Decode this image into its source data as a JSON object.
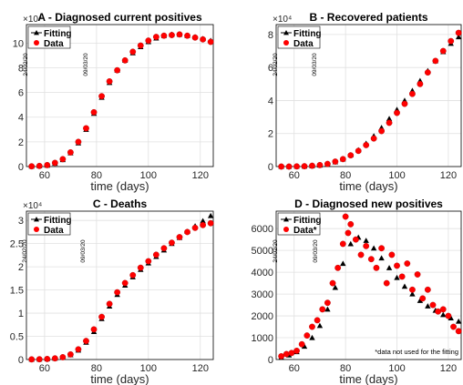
{
  "chart_data": [
    {
      "type": "line",
      "title": "A - Diagnosed current positives",
      "xlabel": "time (days)",
      "ylabel": "",
      "y_exponent_label": "×10⁴",
      "xlim": [
        53,
        125
      ],
      "ylim": [
        0,
        11.5
      ],
      "xticks": [
        60,
        80,
        100,
        120
      ],
      "yticks": [
        0,
        2,
        4,
        6,
        8,
        10
      ],
      "grid": true,
      "legend_position": "top-left",
      "annotations": [
        "24/02/20",
        "09/03/20"
      ],
      "series": [
        {
          "name": "Fitting",
          "marker": "triangle",
          "color": "#000000",
          "x": [
            55,
            58,
            61,
            64,
            67,
            70,
            73,
            76,
            79,
            82,
            85,
            88,
            91,
            94,
            97,
            100,
            103,
            106,
            109,
            112,
            115,
            118,
            121,
            124
          ],
          "y": [
            0.02,
            0.05,
            0.1,
            0.25,
            0.55,
            1.1,
            1.9,
            3.0,
            4.3,
            5.6,
            6.8,
            7.8,
            8.6,
            9.2,
            9.7,
            10.1,
            10.4,
            10.6,
            10.7,
            10.7,
            10.6,
            10.5,
            10.35,
            10.2
          ]
        },
        {
          "name": "Data",
          "marker": "circle",
          "color": "#ff0000",
          "x": [
            55,
            58,
            61,
            64,
            67,
            70,
            73,
            76,
            79,
            82,
            85,
            88,
            91,
            94,
            97,
            100,
            103,
            106,
            109,
            112,
            115,
            118,
            121,
            124
          ],
          "y": [
            0.02,
            0.05,
            0.12,
            0.3,
            0.6,
            1.15,
            2.0,
            3.1,
            4.4,
            5.7,
            6.9,
            7.8,
            8.6,
            9.3,
            9.8,
            10.2,
            10.5,
            10.6,
            10.65,
            10.7,
            10.6,
            10.45,
            10.3,
            10.1
          ]
        }
      ]
    },
    {
      "type": "line",
      "title": "B - Recovered patients",
      "xlabel": "time (days)",
      "ylabel": "",
      "y_exponent_label": "×10⁴",
      "xlim": [
        53,
        125
      ],
      "ylim": [
        0,
        8.6
      ],
      "xticks": [
        60,
        80,
        100,
        120
      ],
      "yticks": [
        0,
        2,
        4,
        6,
        8
      ],
      "grid": true,
      "legend_position": "top-left",
      "annotations": [
        "24/02/20",
        "09/03/20"
      ],
      "series": [
        {
          "name": "Fitting",
          "marker": "triangle",
          "color": "#000000",
          "x": [
            55,
            58,
            61,
            64,
            67,
            70,
            73,
            76,
            79,
            82,
            85,
            88,
            91,
            94,
            97,
            100,
            103,
            106,
            109,
            112,
            115,
            118,
            121,
            124
          ],
          "y": [
            0,
            0,
            0.01,
            0.02,
            0.04,
            0.08,
            0.15,
            0.28,
            0.45,
            0.7,
            1.0,
            1.4,
            1.85,
            2.35,
            2.9,
            3.45,
            4.0,
            4.6,
            5.2,
            5.8,
            6.4,
            6.95,
            7.45,
            7.85
          ]
        },
        {
          "name": "Data",
          "marker": "circle",
          "color": "#ff0000",
          "x": [
            55,
            58,
            61,
            64,
            67,
            70,
            73,
            76,
            79,
            82,
            85,
            88,
            91,
            94,
            97,
            100,
            103,
            106,
            109,
            112,
            115,
            118,
            121,
            124
          ],
          "y": [
            0,
            0,
            0.01,
            0.02,
            0.05,
            0.09,
            0.16,
            0.3,
            0.45,
            0.68,
            0.95,
            1.3,
            1.7,
            2.15,
            2.65,
            3.25,
            3.8,
            4.4,
            5.0,
            5.7,
            6.4,
            7.0,
            7.6,
            8.1
          ]
        }
      ]
    },
    {
      "type": "line",
      "title": "C - Deaths",
      "xlabel": "time (days)",
      "ylabel": "",
      "y_exponent_label": "×10⁴",
      "xlim": [
        53,
        125
      ],
      "ylim": [
        0,
        3.2
      ],
      "xticks": [
        60,
        80,
        100,
        120
      ],
      "yticks": [
        0,
        0.5,
        1,
        1.5,
        2,
        2.5,
        3
      ],
      "ytick_labels": [
        "0",
        "0.5",
        "1",
        "1.5",
        "2",
        "2.5",
        "3"
      ],
      "grid": true,
      "legend_position": "top-left",
      "annotations": [
        "24/02/20",
        "09/03/20"
      ],
      "series": [
        {
          "name": "Fitting",
          "marker": "triangle",
          "color": "#000000",
          "x": [
            55,
            58,
            61,
            64,
            67,
            70,
            73,
            76,
            79,
            82,
            85,
            88,
            91,
            94,
            97,
            100,
            103,
            106,
            109,
            112,
            115,
            118,
            121,
            124
          ],
          "y": [
            0.003,
            0.006,
            0.012,
            0.025,
            0.05,
            0.1,
            0.2,
            0.37,
            0.6,
            0.88,
            1.15,
            1.4,
            1.6,
            1.78,
            1.94,
            2.08,
            2.22,
            2.36,
            2.5,
            2.63,
            2.76,
            2.88,
            2.99,
            3.1
          ]
        },
        {
          "name": "Data",
          "marker": "circle",
          "color": "#ff0000",
          "x": [
            55,
            58,
            61,
            64,
            67,
            70,
            73,
            76,
            79,
            82,
            85,
            88,
            91,
            94,
            97,
            100,
            103,
            106,
            109,
            112,
            115,
            118,
            121,
            124
          ],
          "y": [
            0.003,
            0.006,
            0.012,
            0.025,
            0.05,
            0.11,
            0.22,
            0.4,
            0.65,
            0.92,
            1.2,
            1.45,
            1.65,
            1.82,
            1.98,
            2.12,
            2.26,
            2.4,
            2.52,
            2.64,
            2.75,
            2.84,
            2.9,
            2.94
          ]
        }
      ]
    },
    {
      "type": "scatter",
      "title": "D - Diagnosed new positives",
      "xlabel": "time (days)",
      "ylabel": "",
      "xlim": [
        53,
        125
      ],
      "ylim": [
        0,
        6800
      ],
      "xticks": [
        60,
        80,
        100,
        120
      ],
      "yticks": [
        0,
        1000,
        2000,
        3000,
        4000,
        5000,
        6000
      ],
      "grid": true,
      "legend_position": "top-left",
      "annotations": [
        "24/02/20",
        "09/03/20",
        "*data not used for the fitting"
      ],
      "series": [
        {
          "name": "Fitting",
          "marker": "triangle",
          "color": "#000000",
          "x": [
            55,
            58,
            61,
            64,
            67,
            70,
            73,
            76,
            79,
            82,
            85,
            88,
            91,
            94,
            97,
            100,
            103,
            106,
            109,
            112,
            115,
            118,
            121,
            124
          ],
          "y": [
            100,
            200,
            350,
            600,
            1000,
            1550,
            2300,
            3300,
            4400,
            5300,
            5600,
            5450,
            5100,
            4650,
            4200,
            3750,
            3350,
            3000,
            2700,
            2450,
            2250,
            2050,
            1900,
            1750
          ]
        },
        {
          "name": "Data*",
          "marker": "circle",
          "color": "#ff0000",
          "x": [
            55,
            57,
            59,
            61,
            63,
            65,
            67,
            69,
            71,
            73,
            75,
            77,
            79,
            80,
            81,
            82,
            84,
            86,
            88,
            90,
            92,
            94,
            96,
            98,
            100,
            102,
            104,
            106,
            108,
            110,
            112,
            114,
            116,
            118,
            120,
            122,
            124
          ],
          "y": [
            150,
            250,
            300,
            400,
            700,
            1100,
            1500,
            1800,
            2300,
            2600,
            3500,
            4200,
            5300,
            6550,
            5800,
            6200,
            5500,
            4800,
            5200,
            4600,
            4200,
            5100,
            3500,
            4800,
            4300,
            3800,
            4400,
            3200,
            3900,
            2800,
            3200,
            2500,
            2200,
            2300,
            2000,
            1500,
            1300
          ]
        }
      ]
    }
  ],
  "panels": [
    {
      "title": "A - Diagnosed current positives",
      "xlabel": "time (days)",
      "exponent": "×10⁴",
      "xtick_labels": [
        "60",
        "80",
        "100",
        "120"
      ],
      "ytick_labels": [
        "0",
        "2",
        "4",
        "6",
        "8",
        "10"
      ],
      "legend": [
        "Fitting",
        "Data"
      ],
      "annotations": [
        "24/02/20",
        "09/03/20"
      ],
      "footnote": ""
    },
    {
      "title": "B - Recovered patients",
      "xlabel": "time (days)",
      "exponent": "×10⁴",
      "xtick_labels": [
        "60",
        "80",
        "100",
        "120"
      ],
      "ytick_labels": [
        "0",
        "2",
        "4",
        "6",
        "8"
      ],
      "legend": [
        "Fitting",
        "Data"
      ],
      "annotations": [
        "24/02/20",
        "09/03/20"
      ],
      "footnote": ""
    },
    {
      "title": "C - Deaths",
      "xlabel": "time (days)",
      "exponent": "×10⁴",
      "xtick_labels": [
        "60",
        "80",
        "100",
        "120"
      ],
      "ytick_labels": [
        "0",
        "0.5",
        "1",
        "1.5",
        "2",
        "2.5",
        "3"
      ],
      "legend": [
        "Fitting",
        "Data"
      ],
      "annotations": [
        "24/02/20",
        "09/03/20"
      ],
      "footnote": ""
    },
    {
      "title": "D - Diagnosed new positives",
      "xlabel": "time (days)",
      "exponent": "",
      "xtick_labels": [
        "60",
        "80",
        "100",
        "120"
      ],
      "ytick_labels": [
        "0",
        "1000",
        "2000",
        "3000",
        "4000",
        "5000",
        "6000"
      ],
      "legend": [
        "Fitting",
        "Data*"
      ],
      "annotations": [
        "24/02/20",
        "09/03/20"
      ],
      "footnote": "*data not used for the fitting"
    }
  ],
  "colors": {
    "fitting": "#000000",
    "data": "#ff0000",
    "grid": "#e0e0e0",
    "axis": "#000000"
  }
}
